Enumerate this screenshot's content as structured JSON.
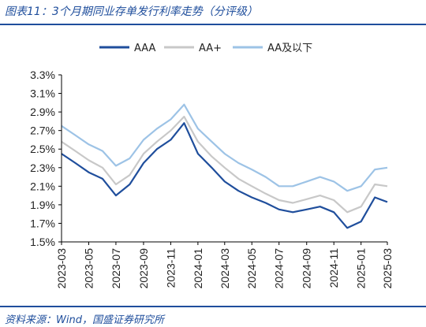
{
  "header": {
    "title": "图表11：3个月期同业存单发行利率走势（分评级）"
  },
  "footer": {
    "source": "资料来源：Wind，国盛证券研究所"
  },
  "colors": {
    "accent": "#1f4e9c",
    "AAA": "#1f4e9c",
    "AA+": "#c8c8c8",
    "AA_below": "#9dc3e6"
  },
  "chart_data": {
    "type": "line",
    "title": "",
    "xlabel": "",
    "ylabel": "",
    "ylim": [
      1.5,
      3.3
    ],
    "y_ticks": [
      "1.5%",
      "1.7%",
      "1.9%",
      "2.1%",
      "2.3%",
      "2.5%",
      "2.7%",
      "2.9%",
      "3.1%",
      "3.3%"
    ],
    "x_ticks": [
      "2023-03",
      "2023-05",
      "2023-07",
      "2023-09",
      "2023-11",
      "2024-01",
      "2024-03",
      "2024-05",
      "2024-07",
      "2024-09",
      "2024-11",
      "2025-01",
      "2025-03"
    ],
    "grid": false,
    "legend_position": "top-center",
    "series": [
      {
        "name": "AAA",
        "color": "#1f4e9c",
        "points": [
          [
            "2023-03",
            2.45
          ],
          [
            "2023-04",
            2.35
          ],
          [
            "2023-05",
            2.25
          ],
          [
            "2023-06",
            2.18
          ],
          [
            "2023-07",
            2.0
          ],
          [
            "2023-08",
            2.12
          ],
          [
            "2023-09",
            2.35
          ],
          [
            "2023-10",
            2.5
          ],
          [
            "2023-11",
            2.6
          ],
          [
            "2023-12",
            2.78
          ],
          [
            "2024-01",
            2.45
          ],
          [
            "2024-02",
            2.3
          ],
          [
            "2024-03",
            2.15
          ],
          [
            "2024-04",
            2.05
          ],
          [
            "2024-05",
            1.98
          ],
          [
            "2024-06",
            1.92
          ],
          [
            "2024-07",
            1.85
          ],
          [
            "2024-08",
            1.82
          ],
          [
            "2024-09",
            1.85
          ],
          [
            "2024-10",
            1.88
          ],
          [
            "2024-11",
            1.82
          ],
          [
            "2024-12",
            1.65
          ],
          [
            "2025-01",
            1.72
          ],
          [
            "2025-02",
            1.98
          ],
          [
            "2025-03",
            1.93
          ]
        ]
      },
      {
        "name": "AA+",
        "color": "#c8c8c8",
        "points": [
          [
            "2023-03",
            2.58
          ],
          [
            "2023-04",
            2.48
          ],
          [
            "2023-05",
            2.38
          ],
          [
            "2023-06",
            2.3
          ],
          [
            "2023-07",
            2.12
          ],
          [
            "2023-08",
            2.22
          ],
          [
            "2023-09",
            2.45
          ],
          [
            "2023-10",
            2.58
          ],
          [
            "2023-11",
            2.7
          ],
          [
            "2023-12",
            2.85
          ],
          [
            "2024-01",
            2.58
          ],
          [
            "2024-02",
            2.42
          ],
          [
            "2024-03",
            2.3
          ],
          [
            "2024-04",
            2.18
          ],
          [
            "2024-05",
            2.1
          ],
          [
            "2024-06",
            2.02
          ],
          [
            "2024-07",
            1.95
          ],
          [
            "2024-08",
            1.92
          ],
          [
            "2024-09",
            1.96
          ],
          [
            "2024-10",
            2.0
          ],
          [
            "2024-11",
            1.95
          ],
          [
            "2024-12",
            1.82
          ],
          [
            "2025-01",
            1.88
          ],
          [
            "2025-02",
            2.12
          ],
          [
            "2025-03",
            2.1
          ]
        ]
      },
      {
        "name": "AA及以下",
        "color": "#9dc3e6",
        "points": [
          [
            "2023-03",
            2.75
          ],
          [
            "2023-04",
            2.65
          ],
          [
            "2023-05",
            2.55
          ],
          [
            "2023-06",
            2.48
          ],
          [
            "2023-07",
            2.32
          ],
          [
            "2023-08",
            2.4
          ],
          [
            "2023-09",
            2.6
          ],
          [
            "2023-10",
            2.72
          ],
          [
            "2023-11",
            2.82
          ],
          [
            "2023-12",
            2.98
          ],
          [
            "2024-01",
            2.72
          ],
          [
            "2024-02",
            2.58
          ],
          [
            "2024-03",
            2.45
          ],
          [
            "2024-04",
            2.35
          ],
          [
            "2024-05",
            2.28
          ],
          [
            "2024-06",
            2.2
          ],
          [
            "2024-07",
            2.1
          ],
          [
            "2024-08",
            2.1
          ],
          [
            "2024-09",
            2.15
          ],
          [
            "2024-10",
            2.2
          ],
          [
            "2024-11",
            2.15
          ],
          [
            "2024-12",
            2.05
          ],
          [
            "2025-01",
            2.1
          ],
          [
            "2025-02",
            2.28
          ],
          [
            "2025-03",
            2.3
          ]
        ]
      }
    ]
  }
}
